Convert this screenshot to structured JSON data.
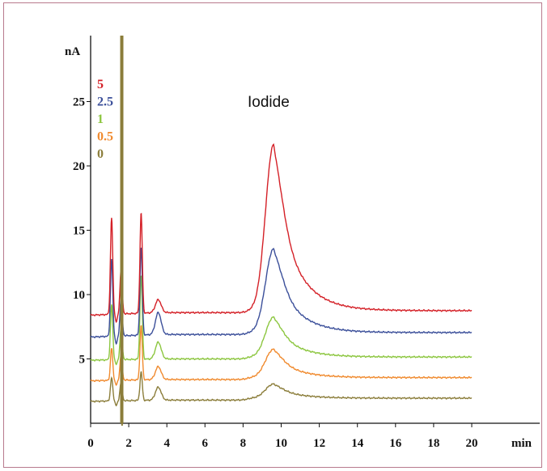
{
  "chart_data": {
    "type": "line",
    "title": "",
    "xlabel": "min",
    "ylabel": "nA",
    "xlim": [
      0,
      22.5
    ],
    "ylim": [
      0,
      30
    ],
    "xticks": [
      0,
      2,
      4,
      6,
      8,
      10,
      12,
      14,
      16,
      18,
      20
    ],
    "yticks": [
      5,
      10,
      15,
      20,
      25
    ],
    "annotation": "Iodide",
    "grid": false,
    "legend_position": "top-left",
    "series": [
      {
        "name": "5",
        "color": "#d42027",
        "baseline": 8.6,
        "peak_height": 12.9,
        "start_level": 8.4,
        "early_peaks": [
          {
            "x": 1.1,
            "h": 7.5
          },
          {
            "x": 1.6,
            "h": 3.5
          },
          {
            "x": 2.65,
            "h": 7.8
          },
          {
            "x": 3.55,
            "h": 1.0
          }
        ]
      },
      {
        "name": "2.5",
        "color": "#3b4f9a",
        "baseline": 6.9,
        "peak_height": 6.5,
        "start_level": 6.7,
        "early_peaks": [
          {
            "x": 1.1,
            "h": 6.0
          },
          {
            "x": 1.6,
            "h": 3.0
          },
          {
            "x": 2.65,
            "h": 6.8
          },
          {
            "x": 3.55,
            "h": 1.7
          }
        ]
      },
      {
        "name": "1",
        "color": "#8cc63f",
        "baseline": 5.0,
        "peak_height": 3.1,
        "start_level": 4.9,
        "early_peaks": [
          {
            "x": 1.1,
            "h": 4.3
          },
          {
            "x": 1.6,
            "h": 2.5
          },
          {
            "x": 2.65,
            "h": 6.5
          },
          {
            "x": 3.55,
            "h": 1.3
          }
        ]
      },
      {
        "name": "0.5",
        "color": "#f08a2e",
        "baseline": 3.4,
        "peak_height": 2.2,
        "start_level": 3.3,
        "early_peaks": [
          {
            "x": 1.1,
            "h": 2.5
          },
          {
            "x": 1.6,
            "h": 2.0
          },
          {
            "x": 2.65,
            "h": 4.2
          },
          {
            "x": 3.55,
            "h": 1.0
          }
        ]
      },
      {
        "name": "0",
        "color": "#8b7d3a",
        "baseline": 1.8,
        "peak_height": 1.1,
        "start_level": 1.7,
        "early_peaks": [
          {
            "x": 1.1,
            "h": 1.8
          },
          {
            "x": 1.6,
            "h": 1.5
          },
          {
            "x": 2.65,
            "h": 2.2
          },
          {
            "x": 3.55,
            "h": 1.0
          }
        ]
      }
    ],
    "peak_x": 9.6,
    "x_end": 20
  }
}
